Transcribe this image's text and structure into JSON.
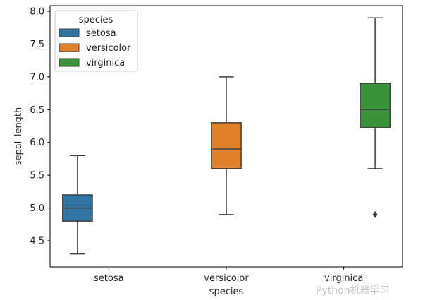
{
  "chart_data": {
    "type": "box",
    "categories": [
      "setosa",
      "versicolor",
      "virginica"
    ],
    "xlabel": "species",
    "ylabel": "sepal_length",
    "ylim": [
      4.2,
      8.1
    ],
    "yticks": [
      "4.5",
      "5.0",
      "5.5",
      "6.0",
      "6.5",
      "7.0",
      "7.5",
      "8.0"
    ],
    "legend": {
      "title": "species",
      "placement": "top-left",
      "entries": [
        "setosa",
        "versicolor",
        "virginica"
      ]
    },
    "series": [
      {
        "name": "setosa",
        "color": "#3274a1",
        "whisker_low": 4.3,
        "q1": 4.8,
        "median": 5.0,
        "q3": 5.2,
        "whisker_high": 5.8,
        "outliers": []
      },
      {
        "name": "versicolor",
        "color": "#e1812c",
        "whisker_low": 4.9,
        "q1": 5.6,
        "median": 5.9,
        "q3": 6.3,
        "whisker_high": 7.0,
        "outliers": []
      },
      {
        "name": "virginica",
        "color": "#3a923a",
        "whisker_low": 5.6,
        "q1": 6.225,
        "median": 6.5,
        "q3": 6.9,
        "whisker_high": 7.9,
        "outliers": [
          4.9
        ]
      }
    ]
  },
  "watermark": "Python机器学习"
}
